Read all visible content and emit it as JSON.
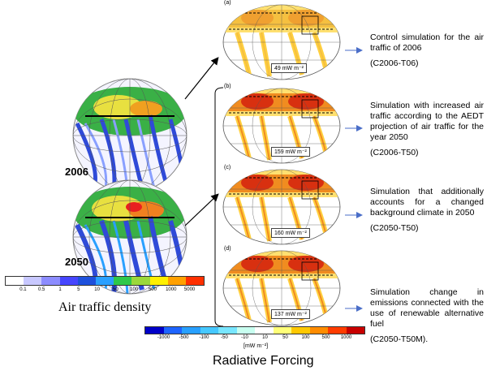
{
  "years": [
    "2006",
    "2050"
  ],
  "panels": [
    {
      "letter": "(a)",
      "value": "49 mW m⁻²",
      "description": [
        "Control simulation for the air traffic of 2006",
        "(C2006-T06)"
      ]
    },
    {
      "letter": "(b)",
      "value": "159 mW m⁻²",
      "description": [
        "Simulation with increased air traffic according to the AEDT projection of air traffic for the year 2050",
        "(C2006-T50)"
      ]
    },
    {
      "letter": "(c)",
      "value": "160 mW m⁻²",
      "description": [
        "Simulation that additionally accounts for a changed background climate in 2050",
        "(C2050-T50)"
      ]
    },
    {
      "letter": "(d)",
      "value": "137 mW m⁻²",
      "description": [
        "Simulation change in emissions connected with the use of renewable alternative fuel",
        "(C2050-T50M)."
      ]
    }
  ],
  "air_traffic_colorbar": {
    "title": "Air traffic density",
    "ticks": [
      "0.1",
      "0.5",
      "1",
      "5",
      "10",
      "50",
      "100",
      "500",
      "1000",
      "5000"
    ],
    "colors": [
      "#ffffff",
      "#c8c8ff",
      "#8c8cff",
      "#4646ff",
      "#1e50dc",
      "#2aa0ff",
      "#2ec84a",
      "#9bd83a",
      "#fff000",
      "#ffa000",
      "#ff3000"
    ]
  },
  "rf_colorbar": {
    "title": "Radiative Forcing",
    "unit": "[mW m⁻²]",
    "ticks": [
      "-1000",
      "-500",
      "-100",
      "-50",
      "-10",
      "10",
      "50",
      "100",
      "500",
      "1000"
    ],
    "colors": [
      "#0000c8",
      "#1e64ff",
      "#28a0ff",
      "#46c8ff",
      "#78e6ff",
      "#c8fff0",
      "#ffffff",
      "#ffff78",
      "#ffc800",
      "#ff8c00",
      "#ff3c00",
      "#c80000"
    ]
  }
}
